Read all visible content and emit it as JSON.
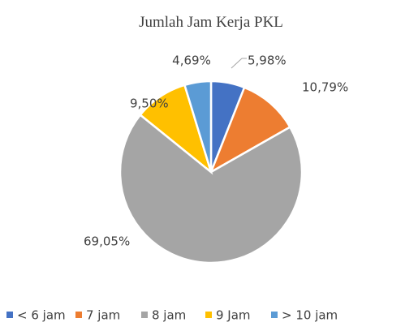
{
  "chart_data": {
    "type": "pie",
    "title": "Jumlah Jam Kerja PKL",
    "categories": [
      "< 6 jam",
      "7 jam",
      "8 jam",
      "9 Jam",
      "> 10 jam"
    ],
    "values": [
      5.98,
      10.79,
      69.05,
      9.5,
      4.69
    ],
    "value_labels": [
      "5,98%",
      "10,79%",
      "69,05%",
      "9,50%",
      "4,69%"
    ],
    "colors": [
      "#4472c4",
      "#ed7d31",
      "#a5a5a5",
      "#ffc000",
      "#5b9bd5"
    ],
    "legend": "bottom"
  }
}
